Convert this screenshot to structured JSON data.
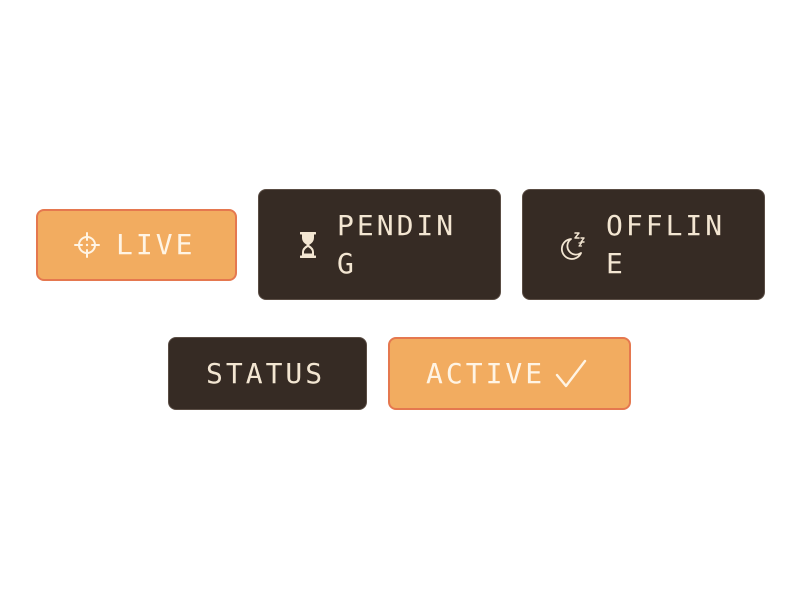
{
  "chips": {
    "live": {
      "label": "LIVE",
      "icon": "crosshair-icon"
    },
    "pending": {
      "label": "PENDIN\nG",
      "icon": "hourglass-icon"
    },
    "offline": {
      "label": "OFFLIN\nE",
      "icon": "moon-sleep-icon"
    },
    "status": {
      "label": "STATUS"
    },
    "active": {
      "label": "ACTIVE",
      "icon": "checkmark-icon"
    }
  },
  "colors": {
    "accent_fill": "#f2ac60",
    "accent_border": "#e5784f",
    "dark_fill": "#362b24",
    "text_light": "#f3e6d2"
  }
}
